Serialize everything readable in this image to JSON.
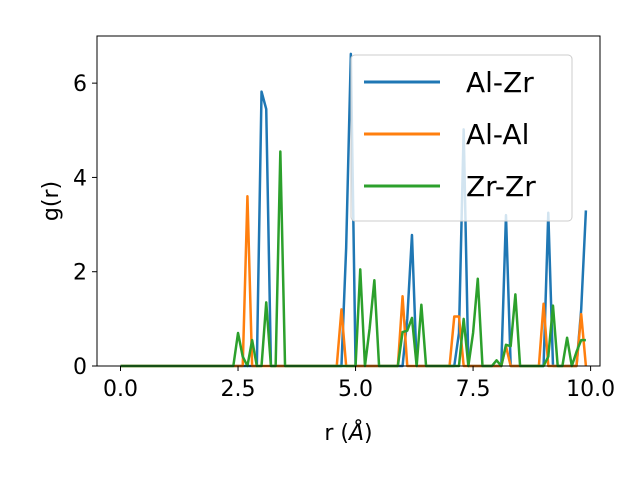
{
  "chart_data": {
    "type": "line",
    "title": "",
    "xlabel": "r",
    "xlabel_unit": "Å",
    "ylabel": "g(r)",
    "xlim": [
      -0.5,
      10.2
    ],
    "ylim": [
      0,
      7
    ],
    "xticks": [
      0.0,
      2.5,
      5.0,
      7.5,
      10.0
    ],
    "xtick_labels": [
      "0.0",
      "2.5",
      "5.0",
      "7.5",
      "10.0"
    ],
    "yticks": [
      0,
      2,
      4,
      6
    ],
    "ytick_labels": [
      "0",
      "2",
      "4",
      "6"
    ],
    "grid": false,
    "legend_position": "top-right",
    "series": [
      {
        "name": "Al-Zr",
        "color": "#1f77b4",
        "x": [
          0.0,
          2.9,
          3.0,
          3.1,
          3.2,
          4.7,
          4.8,
          4.9,
          5.0,
          6.0,
          6.1,
          6.2,
          6.3,
          7.1,
          7.2,
          7.3,
          7.4,
          8.1,
          8.2,
          8.3,
          9.0,
          9.1,
          9.2,
          9.7,
          9.8,
          9.9
        ],
        "y": [
          0.0,
          0.0,
          5.82,
          5.45,
          0.0,
          0.0,
          2.5,
          6.62,
          0.0,
          0.0,
          1.0,
          2.78,
          0.0,
          0.0,
          0.7,
          5.02,
          0.0,
          0.0,
          3.2,
          0.0,
          0.0,
          3.25,
          0.0,
          0.0,
          1.2,
          3.3
        ]
      },
      {
        "name": "Al-Al",
        "color": "#ff7f0e",
        "x": [
          0.0,
          2.6,
          2.7,
          2.8,
          4.6,
          4.7,
          4.8,
          5.9,
          6.0,
          6.1,
          7.0,
          7.1,
          7.2,
          7.3,
          8.1,
          8.2,
          8.3,
          8.9,
          9.0,
          9.1,
          9.7,
          9.8,
          9.9
        ],
        "y": [
          0.0,
          0.0,
          3.6,
          0.0,
          0.0,
          1.2,
          0.0,
          0.0,
          1.48,
          0.0,
          0.0,
          1.05,
          1.05,
          0.0,
          0.0,
          0.42,
          0.0,
          0.0,
          1.32,
          0.0,
          0.0,
          1.1,
          0.0
        ]
      },
      {
        "name": "Zr-Zr",
        "color": "#2ca02c",
        "x": [
          0.0,
          2.4,
          2.5,
          2.6,
          2.7,
          2.8,
          2.9,
          3.0,
          3.1,
          3.2,
          3.3,
          3.4,
          3.5,
          5.0,
          5.1,
          5.2,
          5.3,
          5.4,
          5.5,
          5.9,
          6.0,
          6.1,
          6.2,
          6.3,
          6.4,
          6.5,
          7.1,
          7.2,
          7.3,
          7.4,
          7.5,
          7.6,
          7.7,
          7.9,
          8.0,
          8.1,
          8.2,
          8.3,
          8.4,
          8.5,
          8.6,
          9.0,
          9.1,
          9.2,
          9.3,
          9.4,
          9.5,
          9.6,
          9.7,
          9.8,
          9.9
        ],
        "y": [
          0.0,
          0.0,
          0.7,
          0.2,
          0.0,
          0.55,
          0.0,
          0.0,
          1.35,
          0.0,
          0.0,
          4.55,
          0.0,
          0.0,
          2.05,
          0.0,
          0.8,
          1.82,
          0.0,
          0.0,
          0.72,
          0.75,
          1.02,
          0.0,
          1.3,
          0.0,
          0.0,
          0.0,
          1.0,
          0.0,
          0.7,
          1.85,
          0.0,
          0.0,
          0.12,
          0.0,
          0.45,
          0.42,
          1.52,
          0.0,
          0.0,
          0.0,
          0.2,
          1.28,
          0.0,
          0.0,
          0.6,
          0.0,
          0.3,
          0.55,
          0.55
        ]
      }
    ]
  }
}
